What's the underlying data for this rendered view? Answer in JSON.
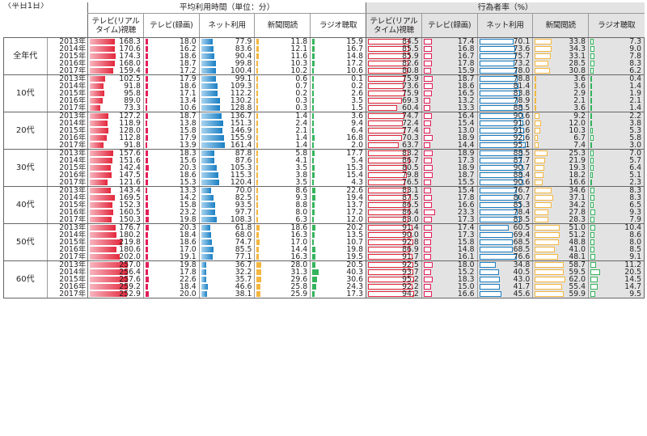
{
  "caption": "〈平日1日〉",
  "header": {
    "group_time": "平均利用時間（単位：分）",
    "group_pct": "行為者率（%）",
    "col_tv_live": "テレビ(リアルタイム)視聴",
    "col_tv_rec": "テレビ(録画)",
    "col_net": "ネット利用",
    "col_newspaper": "新聞閲読",
    "col_radio": "ラジオ聴取"
  },
  "colors": {
    "tv_live": "#e3273c",
    "tv_rec": "#e31e58",
    "net": "#1a7fc4",
    "newspaper": "#f4b63f",
    "radio": "#34b45c"
  },
  "year_suffix": "年",
  "groups": [
    {
      "label": "全年代",
      "rows": [
        {
          "year": "2013",
          "time": [
            "168.3",
            "18.0",
            "77.9",
            "11.8",
            "15.9"
          ],
          "pct": [
            "84.5",
            "17.4",
            "70.1",
            "33.8",
            "7.3"
          ]
        },
        {
          "year": "2014",
          "time": [
            "170.6",
            "16.2",
            "83.6",
            "12.1",
            "16.7"
          ],
          "pct": [
            "85.5",
            "16.8",
            "73.6",
            "34.3",
            "9.0"
          ]
        },
        {
          "year": "2015",
          "time": [
            "174.3",
            "18.6",
            "90.4",
            "11.6",
            "14.8"
          ],
          "pct": [
            "85.9",
            "16.7",
            "75.7",
            "33.1",
            "7.8"
          ]
        },
        {
          "year": "2016",
          "time": [
            "168.0",
            "18.7",
            "99.8",
            "10.3",
            "17.2"
          ],
          "pct": [
            "82.6",
            "17.8",
            "73.2",
            "28.5",
            "8.3"
          ]
        },
        {
          "year": "2017",
          "time": [
            "159.4",
            "17.2",
            "100.4",
            "10.2",
            "10.6"
          ],
          "pct": [
            "80.8",
            "15.9",
            "78.0",
            "30.8",
            "6.2"
          ]
        }
      ]
    },
    {
      "label": "10代",
      "rows": [
        {
          "year": "2013",
          "time": [
            "102.5",
            "17.9",
            "99.1",
            "0.6",
            "0.1"
          ],
          "pct": [
            "75.9",
            "18.7",
            "78.8",
            "3.6",
            "0.4"
          ]
        },
        {
          "year": "2014",
          "time": [
            "91.8",
            "18.6",
            "109.3",
            "0.7",
            "0.2"
          ],
          "pct": [
            "73.6",
            "18.6",
            "81.4",
            "3.6",
            "1.4"
          ]
        },
        {
          "year": "2015",
          "time": [
            "95.8",
            "17.1",
            "112.2",
            "0.2",
            "2.6"
          ],
          "pct": [
            "75.9",
            "16.5",
            "83.8",
            "2.9",
            "1.9"
          ]
        },
        {
          "year": "2016",
          "time": [
            "89.0",
            "13.4",
            "130.2",
            "0.3",
            "3.5"
          ],
          "pct": [
            "69.3",
            "13.2",
            "78.9",
            "2.1",
            "2.1"
          ]
        },
        {
          "year": "2017",
          "time": [
            "73.3",
            "10.6",
            "128.8",
            "0.3",
            "1.5"
          ],
          "pct": [
            "60.4",
            "13.3",
            "88.5",
            "3.6",
            "1.4"
          ]
        }
      ]
    },
    {
      "label": "20代",
      "rows": [
        {
          "year": "2013",
          "time": [
            "127.2",
            "18.7",
            "136.7",
            "1.4",
            "3.6"
          ],
          "pct": [
            "74.7",
            "16.4",
            "90.6",
            "9.2",
            "2.2"
          ]
        },
        {
          "year": "2014",
          "time": [
            "118.9",
            "13.8",
            "151.3",
            "2.4",
            "9.4"
          ],
          "pct": [
            "72.4",
            "15.4",
            "91.0",
            "12.0",
            "3.8"
          ]
        },
        {
          "year": "2015",
          "time": [
            "128.0",
            "15.8",
            "146.9",
            "2.1",
            "6.4"
          ],
          "pct": [
            "77.4",
            "13.0",
            "91.6",
            "10.3",
            "5.3"
          ]
        },
        {
          "year": "2016",
          "time": [
            "112.8",
            "17.9",
            "155.9",
            "1.4",
            "16.8"
          ],
          "pct": [
            "70.3",
            "18.9",
            "92.6",
            "6.7",
            "5.8"
          ]
        },
        {
          "year": "2017",
          "time": [
            "91.8",
            "13.9",
            "161.4",
            "1.4",
            "2.0"
          ],
          "pct": [
            "63.7",
            "14.4",
            "95.1",
            "7.4",
            "3.0"
          ]
        }
      ]
    },
    {
      "label": "30代",
      "rows": [
        {
          "year": "2013",
          "time": [
            "157.6",
            "18.3",
            "87.8",
            "5.8",
            "17.7"
          ],
          "pct": [
            "83.2",
            "18.9",
            "88.5",
            "25.3",
            "7.0"
          ]
        },
        {
          "year": "2014",
          "time": [
            "151.6",
            "15.6",
            "87.6",
            "4.1",
            "5.4"
          ],
          "pct": [
            "86.7",
            "17.3",
            "87.7",
            "21.9",
            "5.7"
          ]
        },
        {
          "year": "2015",
          "time": [
            "142.4",
            "20.3",
            "105.3",
            "3.5",
            "15.3"
          ],
          "pct": [
            "80.5",
            "18.9",
            "90.7",
            "19.3",
            "6.4"
          ]
        },
        {
          "year": "2016",
          "time": [
            "147.5",
            "18.6",
            "115.3",
            "3.8",
            "15.4"
          ],
          "pct": [
            "79.8",
            "18.7",
            "88.4",
            "18.2",
            "5.1"
          ]
        },
        {
          "year": "2017",
          "time": [
            "121.6",
            "15.3",
            "120.4",
            "3.5",
            "4.3"
          ],
          "pct": [
            "76.5",
            "15.5",
            "90.6",
            "16.6",
            "2.3"
          ]
        }
      ]
    },
    {
      "label": "40代",
      "rows": [
        {
          "year": "2013",
          "time": [
            "143.4",
            "13.3",
            "70.0",
            "8.6",
            "22.6"
          ],
          "pct": [
            "83.1",
            "15.4",
            "76.7",
            "34.6",
            "8.3"
          ]
        },
        {
          "year": "2014",
          "time": [
            "169.5",
            "14.2",
            "82.5",
            "9.3",
            "19.4"
          ],
          "pct": [
            "87.5",
            "17.8",
            "80.7",
            "37.1",
            "8.3"
          ]
        },
        {
          "year": "2015",
          "time": [
            "152.3",
            "15.8",
            "93.5",
            "8.8",
            "13.7"
          ],
          "pct": [
            "86.5",
            "16.6",
            "85.3",
            "34.2",
            "6.5"
          ]
        },
        {
          "year": "2016",
          "time": [
            "160.5",
            "23.2",
            "97.7",
            "8.0",
            "17.2"
          ],
          "pct": [
            "86.4",
            "23.3",
            "78.4",
            "27.8",
            "9.3"
          ]
        },
        {
          "year": "2017",
          "time": [
            "150.3",
            "19.8",
            "108.3",
            "6.3",
            "12.0"
          ],
          "pct": [
            "83.0",
            "17.3",
            "83.5",
            "28.3",
            "7.9"
          ]
        }
      ]
    },
    {
      "label": "50代",
      "rows": [
        {
          "year": "2013",
          "time": [
            "176.7",
            "20.3",
            "61.8",
            "18.6",
            "20.2"
          ],
          "pct": [
            "91.4",
            "17.4",
            "60.5",
            "51.0",
            "10.4"
          ]
        },
        {
          "year": "2014",
          "time": [
            "180.2",
            "18.4",
            "68.0",
            "16.3",
            "13.5"
          ],
          "pct": [
            "90.0",
            "17.3",
            "69.4",
            "51.2",
            "8.6"
          ]
        },
        {
          "year": "2015",
          "time": [
            "219.8",
            "18.6",
            "74.7",
            "17.0",
            "10.7"
          ],
          "pct": [
            "92.8",
            "15.8",
            "68.5",
            "48.8",
            "8.0"
          ]
        },
        {
          "year": "2016",
          "time": [
            "180.6",
            "17.0",
            "85.5",
            "14.4",
            "19.8"
          ],
          "pct": [
            "86.9",
            "14.8",
            "68.5",
            "41.0",
            "8.5"
          ]
        },
        {
          "year": "2017",
          "time": [
            "202.0",
            "19.1",
            "77.1",
            "16.3",
            "19.5"
          ],
          "pct": [
            "91.7",
            "16.1",
            "76.6",
            "48.1",
            "9.1"
          ]
        }
      ]
    },
    {
      "label": "60代",
      "rows": [
        {
          "year": "2013",
          "time": [
            "257.0",
            "19.8",
            "36.7",
            "28.0",
            "20.5"
          ],
          "pct": [
            "92.5",
            "18.0",
            "34.8",
            "58.7",
            "11.2"
          ]
        },
        {
          "year": "2014",
          "time": [
            "256.4",
            "17.8",
            "32.2",
            "31.3",
            "40.3"
          ],
          "pct": [
            "93.7",
            "15.2",
            "40.5",
            "59.5",
            "20.5"
          ]
        },
        {
          "year": "2015",
          "time": [
            "257.6",
            "22.6",
            "35.7",
            "29.6",
            "30.6"
          ],
          "pct": [
            "95.2",
            "18.3",
            "43.0",
            "62.0",
            "14.5"
          ]
        },
        {
          "year": "2016",
          "time": [
            "259.2",
            "18.4",
            "46.6",
            "25.8",
            "24.3"
          ],
          "pct": [
            "92.2",
            "15.0",
            "41.7",
            "55.4",
            "14.7"
          ]
        },
        {
          "year": "2017",
          "time": [
            "252.9",
            "20.0",
            "38.1",
            "25.9",
            "17.3"
          ],
          "pct": [
            "94.2",
            "16.6",
            "45.6",
            "59.9",
            "9.5"
          ]
        }
      ]
    }
  ]
}
